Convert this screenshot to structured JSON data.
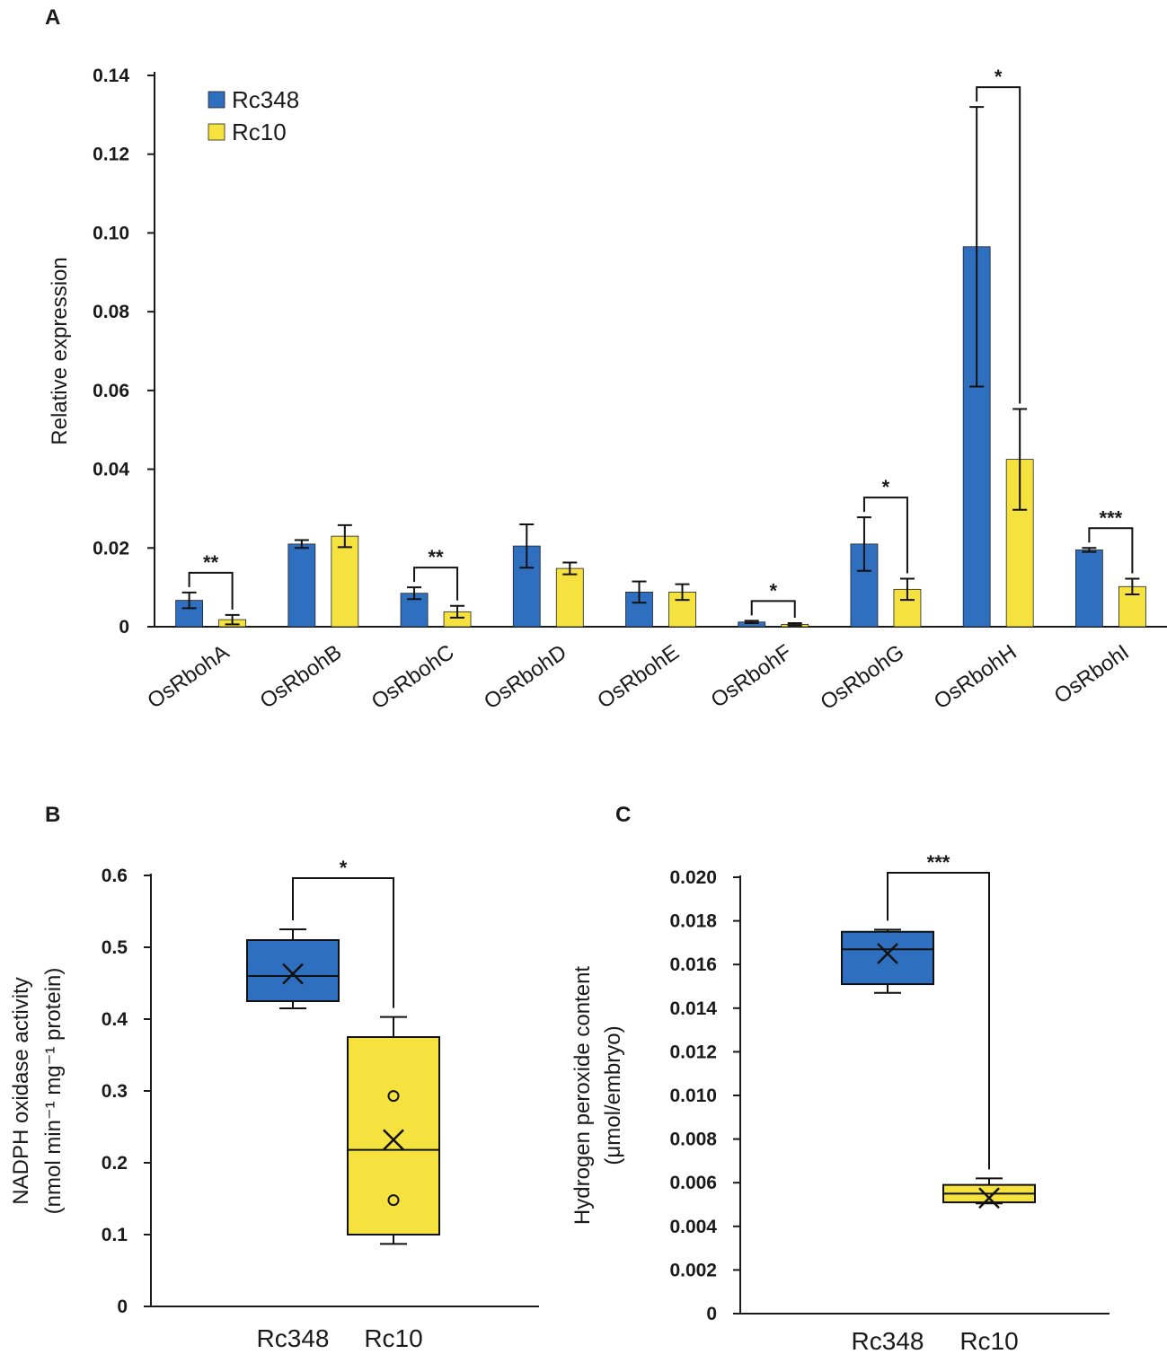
{
  "colors": {
    "rc348": "#2f6fbf",
    "rc10": "#f5e23f",
    "axis": "#1a1a1a"
  },
  "chart_data": [
    {
      "panel": "A",
      "type": "bar",
      "ylabel": "Relative expression",
      "ylim": [
        0,
        0.14
      ],
      "yticks": [
        "0",
        "0.02",
        "0.04",
        "0.06",
        "0.08",
        "0.10",
        "0.12",
        "0.14"
      ],
      "categories": [
        "OsRbohA",
        "OsRbohB",
        "OsRbohC",
        "OsRbohD",
        "OsRbohE",
        "OsRbohF",
        "OsRbohG",
        "OsRbohH",
        "OsRbohI"
      ],
      "legend": [
        "Rc348",
        "Rc10"
      ],
      "legend_position": "top-left",
      "series": [
        {
          "name": "Rc348",
          "values": [
            0.0067,
            0.021,
            0.0085,
            0.0205,
            0.0088,
            0.0012,
            0.021,
            0.0965,
            0.0195
          ],
          "errors": [
            0.002,
            0.001,
            0.0015,
            0.0055,
            0.0027,
            0.0003,
            0.0068,
            0.0355,
            0.0005
          ]
        },
        {
          "name": "Rc10",
          "values": [
            0.0018,
            0.023,
            0.0038,
            0.0148,
            0.0088,
            0.0006,
            0.0095,
            0.0425,
            0.0102
          ],
          "errors": [
            0.0012,
            0.0028,
            0.0015,
            0.0015,
            0.002,
            0.0003,
            0.0027,
            0.0128,
            0.002
          ]
        }
      ],
      "significance": [
        {
          "category": "OsRbohA",
          "label": "**"
        },
        {
          "category": "OsRbohC",
          "label": "**"
        },
        {
          "category": "OsRbohF",
          "label": "*"
        },
        {
          "category": "OsRbohG",
          "label": "*"
        },
        {
          "category": "OsRbohH",
          "label": "*"
        },
        {
          "category": "OsRbohI",
          "label": "***"
        }
      ]
    },
    {
      "panel": "B",
      "type": "box",
      "ylabel": [
        "NADPH oxidase activity",
        "(nmol min⁻¹ mg⁻¹ protein)"
      ],
      "ylim": [
        0,
        0.6
      ],
      "yticks": [
        "0",
        "0.1",
        "0.2",
        "0.3",
        "0.4",
        "0.5",
        "0.6"
      ],
      "categories": [
        "Rc348",
        "Rc10"
      ],
      "boxes": [
        {
          "name": "Rc348",
          "min": 0.415,
          "q1": 0.425,
          "median": 0.46,
          "q3": 0.51,
          "max": 0.525,
          "mean": 0.463,
          "outliers": []
        },
        {
          "name": "Rc10",
          "min": 0.087,
          "q1": 0.1,
          "median": 0.218,
          "q3": 0.375,
          "max": 0.403,
          "mean": 0.232,
          "outliers": [
            0.293,
            0.148
          ]
        }
      ],
      "significance": "*"
    },
    {
      "panel": "C",
      "type": "box",
      "ylabel": [
        "Hydrogen peroxide content",
        "(μmol/embryo)"
      ],
      "ylim": [
        0,
        0.02
      ],
      "yticks": [
        "0",
        "0.002",
        "0.004",
        "0.006",
        "0.008",
        "0.010",
        "0.012",
        "0.014",
        "0.016",
        "0.018",
        "0.020"
      ],
      "categories": [
        "Rc348",
        "Rc10"
      ],
      "boxes": [
        {
          "name": "Rc348",
          "min": 0.0147,
          "q1": 0.0151,
          "median": 0.0167,
          "q3": 0.0175,
          "max": 0.0176,
          "mean": 0.0165,
          "outliers": []
        },
        {
          "name": "Rc10",
          "min": 0.00505,
          "q1": 0.0051,
          "median": 0.0055,
          "q3": 0.0059,
          "max": 0.0062,
          "mean": 0.0053,
          "outliers": []
        }
      ],
      "significance": "***"
    }
  ]
}
